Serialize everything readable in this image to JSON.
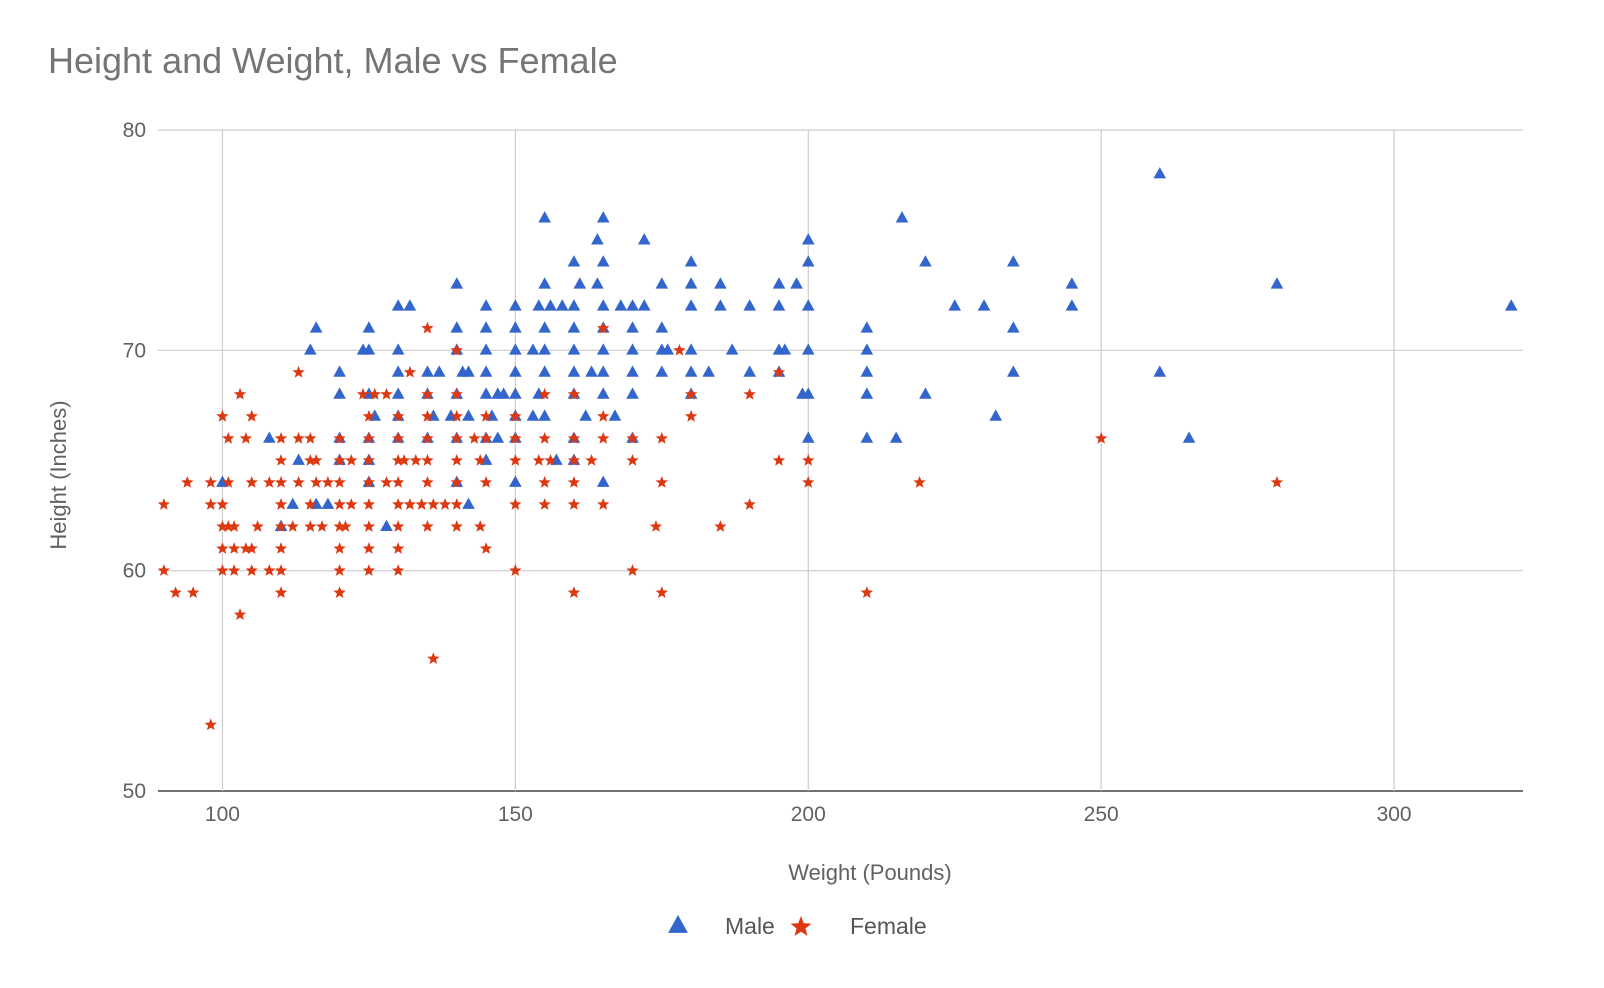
{
  "chart_data": {
    "type": "scatter",
    "title": "Height and Weight, Male vs Female",
    "xlabel": "Weight (Pounds)",
    "ylabel": "Height (Inches)",
    "xlim": [
      89,
      322
    ],
    "ylim": [
      50,
      80
    ],
    "xticks": [
      100,
      150,
      200,
      250,
      300
    ],
    "yticks": [
      50,
      60,
      70,
      80
    ],
    "grid": true,
    "legend_position": "bottom",
    "series": [
      {
        "name": "Male",
        "marker": "triangle",
        "color": "#3366cc",
        "points": [
          [
            260,
            78
          ],
          [
            155,
            76
          ],
          [
            165,
            76
          ],
          [
            216,
            76
          ],
          [
            164,
            75
          ],
          [
            172,
            75
          ],
          [
            200,
            75
          ],
          [
            160,
            74
          ],
          [
            165,
            74
          ],
          [
            180,
            74
          ],
          [
            200,
            74
          ],
          [
            220,
            74
          ],
          [
            235,
            74
          ],
          [
            140,
            73
          ],
          [
            155,
            73
          ],
          [
            161,
            73
          ],
          [
            164,
            73
          ],
          [
            175,
            73
          ],
          [
            180,
            73
          ],
          [
            185,
            73
          ],
          [
            195,
            73
          ],
          [
            198,
            73
          ],
          [
            245,
            73
          ],
          [
            280,
            73
          ],
          [
            130,
            72
          ],
          [
            132,
            72
          ],
          [
            145,
            72
          ],
          [
            150,
            72
          ],
          [
            154,
            72
          ],
          [
            156,
            72
          ],
          [
            158,
            72
          ],
          [
            160,
            72
          ],
          [
            165,
            72
          ],
          [
            168,
            72
          ],
          [
            170,
            72
          ],
          [
            172,
            72
          ],
          [
            180,
            72
          ],
          [
            185,
            72
          ],
          [
            190,
            72
          ],
          [
            195,
            72
          ],
          [
            200,
            72
          ],
          [
            225,
            72
          ],
          [
            230,
            72
          ],
          [
            245,
            72
          ],
          [
            320,
            72
          ],
          [
            116,
            71
          ],
          [
            125,
            71
          ],
          [
            140,
            71
          ],
          [
            145,
            71
          ],
          [
            150,
            71
          ],
          [
            155,
            71
          ],
          [
            160,
            71
          ],
          [
            165,
            71
          ],
          [
            170,
            71
          ],
          [
            175,
            71
          ],
          [
            210,
            71
          ],
          [
            235,
            71
          ],
          [
            115,
            70
          ],
          [
            124,
            70
          ],
          [
            125,
            70
          ],
          [
            130,
            70
          ],
          [
            140,
            70
          ],
          [
            145,
            70
          ],
          [
            150,
            70
          ],
          [
            153,
            70
          ],
          [
            155,
            70
          ],
          [
            160,
            70
          ],
          [
            165,
            70
          ],
          [
            170,
            70
          ],
          [
            175,
            70
          ],
          [
            176,
            70
          ],
          [
            180,
            70
          ],
          [
            187,
            70
          ],
          [
            195,
            70
          ],
          [
            196,
            70
          ],
          [
            200,
            70
          ],
          [
            210,
            70
          ],
          [
            120,
            69
          ],
          [
            130,
            69
          ],
          [
            135,
            69
          ],
          [
            137,
            69
          ],
          [
            141,
            69
          ],
          [
            142,
            69
          ],
          [
            145,
            69
          ],
          [
            150,
            69
          ],
          [
            155,
            69
          ],
          [
            160,
            69
          ],
          [
            163,
            69
          ],
          [
            165,
            69
          ],
          [
            170,
            69
          ],
          [
            175,
            69
          ],
          [
            180,
            69
          ],
          [
            183,
            69
          ],
          [
            190,
            69
          ],
          [
            195,
            69
          ],
          [
            210,
            69
          ],
          [
            235,
            69
          ],
          [
            260,
            69
          ],
          [
            120,
            68
          ],
          [
            125,
            68
          ],
          [
            130,
            68
          ],
          [
            135,
            68
          ],
          [
            140,
            68
          ],
          [
            145,
            68
          ],
          [
            147,
            68
          ],
          [
            148,
            68
          ],
          [
            150,
            68
          ],
          [
            154,
            68
          ],
          [
            160,
            68
          ],
          [
            165,
            68
          ],
          [
            170,
            68
          ],
          [
            180,
            68
          ],
          [
            199,
            68
          ],
          [
            200,
            68
          ],
          [
            210,
            68
          ],
          [
            220,
            68
          ],
          [
            126,
            67
          ],
          [
            130,
            67
          ],
          [
            136,
            67
          ],
          [
            139,
            67
          ],
          [
            142,
            67
          ],
          [
            146,
            67
          ],
          [
            150,
            67
          ],
          [
            153,
            67
          ],
          [
            155,
            67
          ],
          [
            162,
            67
          ],
          [
            167,
            67
          ],
          [
            232,
            67
          ],
          [
            108,
            66
          ],
          [
            120,
            66
          ],
          [
            125,
            66
          ],
          [
            130,
            66
          ],
          [
            135,
            66
          ],
          [
            140,
            66
          ],
          [
            145,
            66
          ],
          [
            147,
            66
          ],
          [
            150,
            66
          ],
          [
            160,
            66
          ],
          [
            170,
            66
          ],
          [
            200,
            66
          ],
          [
            210,
            66
          ],
          [
            215,
            66
          ],
          [
            265,
            66
          ],
          [
            113,
            65
          ],
          [
            120,
            65
          ],
          [
            125,
            65
          ],
          [
            145,
            65
          ],
          [
            157,
            65
          ],
          [
            160,
            65
          ],
          [
            100,
            64
          ],
          [
            125,
            64
          ],
          [
            140,
            64
          ],
          [
            165,
            64
          ],
          [
            150,
            64
          ],
          [
            112,
            63
          ],
          [
            116,
            63
          ],
          [
            118,
            63
          ],
          [
            142,
            63
          ],
          [
            110,
            62
          ],
          [
            128,
            62
          ]
        ]
      },
      {
        "name": "Female",
        "marker": "star",
        "color": "#dc3912",
        "points": [
          [
            135,
            71
          ],
          [
            165,
            71
          ],
          [
            140,
            70
          ],
          [
            178,
            70
          ],
          [
            113,
            69
          ],
          [
            132,
            69
          ],
          [
            195,
            69
          ],
          [
            103,
            68
          ],
          [
            124,
            68
          ],
          [
            126,
            68
          ],
          [
            128,
            68
          ],
          [
            135,
            68
          ],
          [
            140,
            68
          ],
          [
            155,
            68
          ],
          [
            160,
            68
          ],
          [
            180,
            68
          ],
          [
            190,
            68
          ],
          [
            100,
            67
          ],
          [
            105,
            67
          ],
          [
            125,
            67
          ],
          [
            130,
            67
          ],
          [
            135,
            67
          ],
          [
            140,
            67
          ],
          [
            145,
            67
          ],
          [
            150,
            67
          ],
          [
            165,
            67
          ],
          [
            180,
            67
          ],
          [
            101,
            66
          ],
          [
            104,
            66
          ],
          [
            110,
            66
          ],
          [
            113,
            66
          ],
          [
            115,
            66
          ],
          [
            120,
            66
          ],
          [
            125,
            66
          ],
          [
            130,
            66
          ],
          [
            135,
            66
          ],
          [
            140,
            66
          ],
          [
            143,
            66
          ],
          [
            145,
            66
          ],
          [
            150,
            66
          ],
          [
            155,
            66
          ],
          [
            160,
            66
          ],
          [
            165,
            66
          ],
          [
            170,
            66
          ],
          [
            175,
            66
          ],
          [
            250,
            66
          ],
          [
            110,
            65
          ],
          [
            115,
            65
          ],
          [
            116,
            65
          ],
          [
            120,
            65
          ],
          [
            122,
            65
          ],
          [
            125,
            65
          ],
          [
            130,
            65
          ],
          [
            131,
            65
          ],
          [
            133,
            65
          ],
          [
            135,
            65
          ],
          [
            140,
            65
          ],
          [
            144,
            65
          ],
          [
            150,
            65
          ],
          [
            154,
            65
          ],
          [
            156,
            65
          ],
          [
            160,
            65
          ],
          [
            163,
            65
          ],
          [
            170,
            65
          ],
          [
            195,
            65
          ],
          [
            200,
            65
          ],
          [
            94,
            64
          ],
          [
            98,
            64
          ],
          [
            101,
            64
          ],
          [
            105,
            64
          ],
          [
            108,
            64
          ],
          [
            110,
            64
          ],
          [
            113,
            64
          ],
          [
            116,
            64
          ],
          [
            118,
            64
          ],
          [
            120,
            64
          ],
          [
            125,
            64
          ],
          [
            128,
            64
          ],
          [
            130,
            64
          ],
          [
            135,
            64
          ],
          [
            140,
            64
          ],
          [
            145,
            64
          ],
          [
            155,
            64
          ],
          [
            160,
            64
          ],
          [
            175,
            64
          ],
          [
            200,
            64
          ],
          [
            219,
            64
          ],
          [
            280,
            64
          ],
          [
            90,
            63
          ],
          [
            98,
            63
          ],
          [
            100,
            63
          ],
          [
            110,
            63
          ],
          [
            115,
            63
          ],
          [
            120,
            63
          ],
          [
            122,
            63
          ],
          [
            125,
            63
          ],
          [
            130,
            63
          ],
          [
            132,
            63
          ],
          [
            134,
            63
          ],
          [
            136,
            63
          ],
          [
            138,
            63
          ],
          [
            140,
            63
          ],
          [
            150,
            63
          ],
          [
            155,
            63
          ],
          [
            160,
            63
          ],
          [
            165,
            63
          ],
          [
            190,
            63
          ],
          [
            100,
            62
          ],
          [
            101,
            62
          ],
          [
            102,
            62
          ],
          [
            106,
            62
          ],
          [
            110,
            62
          ],
          [
            112,
            62
          ],
          [
            115,
            62
          ],
          [
            117,
            62
          ],
          [
            120,
            62
          ],
          [
            121,
            62
          ],
          [
            125,
            62
          ],
          [
            130,
            62
          ],
          [
            135,
            62
          ],
          [
            140,
            62
          ],
          [
            144,
            62
          ],
          [
            174,
            62
          ],
          [
            185,
            62
          ],
          [
            100,
            61
          ],
          [
            102,
            61
          ],
          [
            104,
            61
          ],
          [
            105,
            61
          ],
          [
            110,
            61
          ],
          [
            120,
            61
          ],
          [
            125,
            61
          ],
          [
            130,
            61
          ],
          [
            145,
            61
          ],
          [
            90,
            60
          ],
          [
            100,
            60
          ],
          [
            102,
            60
          ],
          [
            105,
            60
          ],
          [
            108,
            60
          ],
          [
            110,
            60
          ],
          [
            120,
            60
          ],
          [
            125,
            60
          ],
          [
            130,
            60
          ],
          [
            150,
            60
          ],
          [
            170,
            60
          ],
          [
            92,
            59
          ],
          [
            95,
            59
          ],
          [
            110,
            59
          ],
          [
            120,
            59
          ],
          [
            160,
            59
          ],
          [
            175,
            59
          ],
          [
            210,
            59
          ],
          [
            103,
            58
          ],
          [
            136,
            56
          ],
          [
            98,
            53
          ]
        ]
      }
    ]
  }
}
